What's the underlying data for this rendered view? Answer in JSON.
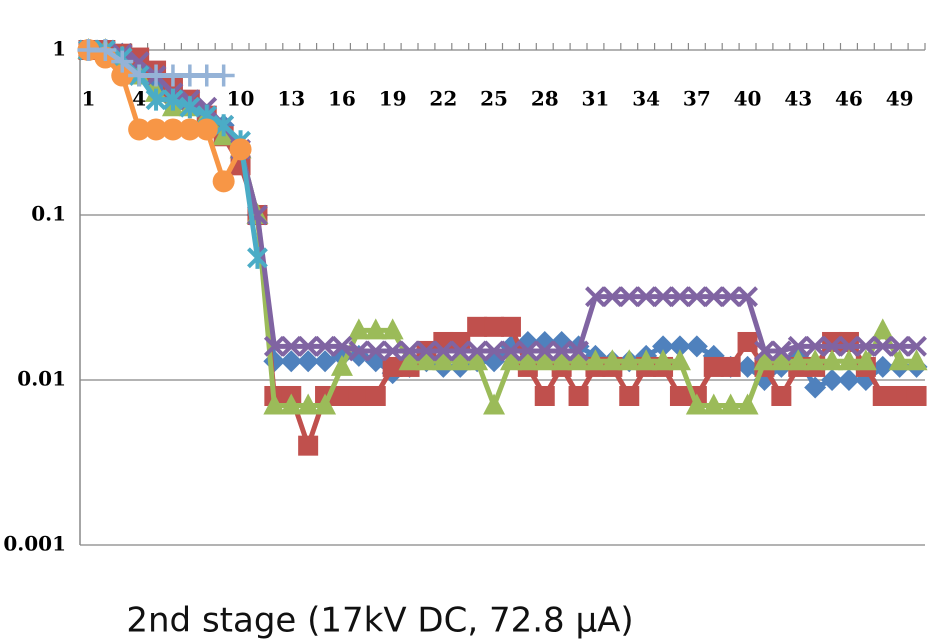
{
  "chart_data": {
    "type": "line",
    "log_y": true,
    "grid": true,
    "caption": "2nd stage (17kV DC, 72.8 μA)",
    "categories": [
      1,
      null,
      null,
      4,
      null,
      null,
      7,
      null,
      null,
      10,
      null,
      null,
      13,
      null,
      null,
      16,
      null,
      null,
      19,
      null,
      null,
      22,
      null,
      null,
      25,
      null,
      null,
      28,
      null,
      null,
      31,
      null,
      null,
      34,
      null,
      null,
      37,
      null,
      null,
      40,
      null,
      null,
      43,
      null,
      null,
      46,
      null,
      null,
      49,
      null
    ],
    "ylim": [
      0.001,
      1
    ],
    "yticks": [
      0.001,
      0.01,
      0.1,
      1
    ],
    "series": [
      {
        "color": "#4f81bd",
        "marker": "diamond",
        "values": [
          1,
          1,
          0.95,
          0.85,
          0.6,
          0.5,
          0.45,
          0.4,
          0.35,
          0.25,
          0.1,
          0.013,
          0.013,
          0.013,
          0.013,
          0.014,
          0.014,
          0.013,
          0.011,
          0.012,
          0.013,
          0.012,
          0.012,
          0.013,
          0.013,
          0.016,
          0.017,
          0.017,
          0.017,
          0.016,
          0.014,
          0.013,
          0.013,
          0.014,
          0.016,
          0.016,
          0.016,
          0.014,
          0.012,
          0.012,
          0.01,
          0.012,
          0.014,
          0.009,
          0.01,
          0.01,
          0.01,
          0.012,
          0.012,
          0.012
        ]
      },
      {
        "color": "#c0504d",
        "marker": "square",
        "values": [
          1,
          1,
          0.95,
          0.9,
          0.75,
          0.6,
          0.5,
          0.4,
          0.3,
          0.2,
          0.1,
          0.008,
          0.008,
          0.004,
          0.008,
          0.008,
          0.008,
          0.008,
          0.012,
          0.012,
          0.015,
          0.017,
          0.017,
          0.021,
          0.021,
          0.021,
          0.012,
          0.008,
          0.012,
          0.008,
          0.012,
          0.012,
          0.008,
          0.012,
          0.012,
          0.008,
          0.008,
          0.012,
          0.012,
          0.017,
          0.012,
          0.008,
          0.012,
          0.012,
          0.017,
          0.017,
          0.012,
          0.008,
          0.008,
          0.008
        ]
      },
      {
        "color": "#9bbb59",
        "marker": "triangle",
        "values": [
          1,
          1,
          0.9,
          0.7,
          0.55,
          0.45,
          0.45,
          0.4,
          0.3,
          0.25,
          0.1,
          0.007,
          0.007,
          0.007,
          0.007,
          0.012,
          0.02,
          0.02,
          0.02,
          0.013,
          0.013,
          0.013,
          0.013,
          0.013,
          0.007,
          0.013,
          0.013,
          0.013,
          0.013,
          0.013,
          0.013,
          0.013,
          0.013,
          0.013,
          0.013,
          0.013,
          0.007,
          0.007,
          0.007,
          0.007,
          0.013,
          0.013,
          0.013,
          0.013,
          0.013,
          0.013,
          0.013,
          0.02,
          0.013,
          0.013
        ]
      },
      {
        "color": "#8064a2",
        "marker": "x",
        "values": [
          1,
          1,
          0.95,
          0.85,
          0.7,
          0.55,
          0.5,
          0.45,
          0.35,
          0.25,
          0.1,
          0.016,
          0.016,
          0.016,
          0.016,
          0.016,
          0.015,
          0.015,
          0.015,
          0.015,
          0.015,
          0.015,
          0.015,
          0.015,
          0.015,
          0.015,
          0.015,
          0.015,
          0.015,
          0.015,
          0.032,
          0.032,
          0.032,
          0.032,
          0.032,
          0.032,
          0.032,
          0.032,
          0.032,
          0.032,
          0.015,
          0.015,
          0.016,
          0.016,
          0.016,
          0.016,
          0.016,
          0.016,
          0.016,
          0.016
        ]
      },
      {
        "color": "#4bacc6",
        "marker": "asterisk",
        "values": [
          1,
          1,
          0.9,
          0.7,
          0.5,
          0.5,
          0.45,
          0.4,
          0.35,
          0.28,
          0.055,
          null,
          null,
          null,
          null,
          null,
          null,
          null,
          null,
          null,
          null,
          null,
          null,
          null,
          null,
          null,
          null,
          null,
          null,
          null,
          null,
          null,
          null,
          null,
          null,
          null,
          null,
          null,
          null,
          null,
          null,
          null,
          null,
          null,
          null,
          null,
          null,
          null,
          null,
          null
        ]
      },
      {
        "color": "#f79646",
        "marker": "circle",
        "values": [
          1,
          0.9,
          0.7,
          0.33,
          0.33,
          0.33,
          0.33,
          0.33,
          0.16,
          0.25,
          null,
          null,
          null,
          null,
          null,
          null,
          null,
          null,
          null,
          null,
          null,
          null,
          null,
          null,
          null,
          null,
          null,
          null,
          null,
          null,
          null,
          null,
          null,
          null,
          null,
          null,
          null,
          null,
          null,
          null,
          null,
          null,
          null,
          null,
          null,
          null,
          null,
          null,
          null,
          null
        ]
      },
      {
        "color": "#95b3d7",
        "marker": "plus",
        "values": [
          1,
          1,
          0.85,
          0.7,
          0.7,
          0.7,
          0.7,
          0.7,
          0.7,
          null,
          null,
          null,
          null,
          null,
          null,
          null,
          null,
          null,
          null,
          null,
          null,
          null,
          null,
          null,
          null,
          null,
          null,
          null,
          null,
          null,
          null,
          null,
          null,
          null,
          null,
          null,
          null,
          null,
          null,
          null,
          null,
          null,
          null,
          null,
          null,
          null,
          null,
          null,
          null,
          null
        ]
      }
    ]
  }
}
